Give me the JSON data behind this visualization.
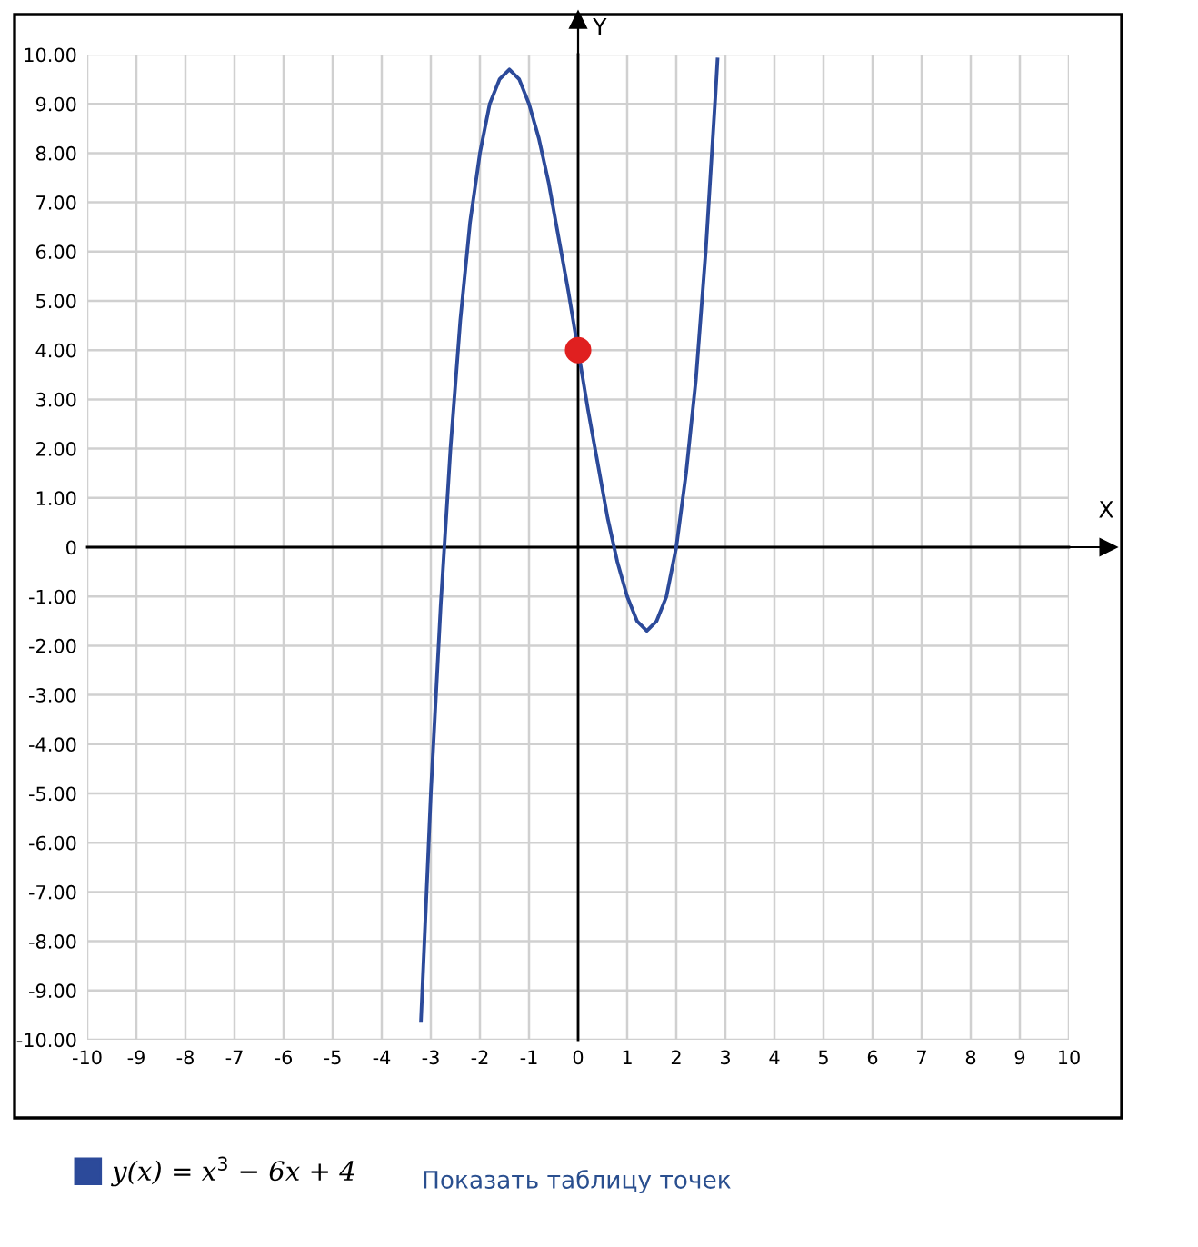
{
  "chart_data": {
    "type": "line",
    "xlabel": "X",
    "ylabel": "Y",
    "xlim": [
      -10,
      10
    ],
    "ylim": [
      -10,
      10
    ],
    "xticks": [
      -10,
      -9,
      -8,
      -7,
      -6,
      -5,
      -4,
      -3,
      -2,
      -1,
      0,
      1,
      2,
      3,
      4,
      5,
      6,
      7,
      8,
      9,
      10
    ],
    "yticks": [
      {
        "value": 10,
        "label": "10.00"
      },
      {
        "value": 9,
        "label": "9.00"
      },
      {
        "value": 8,
        "label": "8.00"
      },
      {
        "value": 7,
        "label": "7.00"
      },
      {
        "value": 6,
        "label": "6.00"
      },
      {
        "value": 5,
        "label": "5.00"
      },
      {
        "value": 4,
        "label": "4.00"
      },
      {
        "value": 3,
        "label": "3.00"
      },
      {
        "value": 2,
        "label": "2.00"
      },
      {
        "value": 1,
        "label": "1.00"
      },
      0,
      {
        "value": -1,
        "label": "-1.00"
      },
      {
        "value": -2,
        "label": "-2.00"
      },
      {
        "value": -3,
        "label": "-3.00"
      },
      {
        "value": -4,
        "label": "-4.00"
      },
      {
        "value": -5,
        "label": "-5.00"
      },
      {
        "value": -6,
        "label": "-6.00"
      },
      {
        "value": -7,
        "label": "-7.00"
      },
      {
        "value": -8,
        "label": "-8.00"
      },
      {
        "value": -9,
        "label": "-9.00"
      },
      {
        "value": -10,
        "label": "-10.00"
      }
    ],
    "grid": true,
    "legend": "bottom left",
    "marker": "none",
    "line_style": "solid",
    "series": [
      {
        "name": "y(x) = x$^{3}$ − 6x + 4",
        "color": "#2c4a9a",
        "x": [
          -3.2,
          -3.0,
          -2.8,
          -2.6,
          -2.4,
          -2.2,
          -2.0,
          -1.8,
          -1.6,
          -1.4,
          -1.2,
          -1.0,
          -0.8,
          -0.6,
          -0.4,
          -0.2,
          0,
          0.2,
          0.4,
          0.6,
          0.8,
          1.0,
          1.2,
          1.4,
          1.6,
          1.8,
          2.0,
          2.2,
          2.4,
          2.6,
          2.8,
          2.84
        ],
        "values": [
          -9.6,
          -5,
          -1.2,
          2,
          4.6,
          6.6,
          8,
          9,
          9.5,
          9.7,
          9.5,
          9,
          8.3,
          7.4,
          6.3,
          5.2,
          4,
          2.8,
          1.7,
          0.6,
          -0.3,
          -1,
          -1.5,
          -1.7,
          -1.5,
          -1,
          0,
          1.5,
          3.4,
          6,
          9.2,
          9.9
        ]
      },
      {
        "type": "scatter",
        "marker": "circle",
        "color": "#e02020",
        "x": [
          0
        ],
        "values": [
          4
        ]
      }
    ],
    "annotations": [
      "Показать таблицу точек"
    ]
  }
}
